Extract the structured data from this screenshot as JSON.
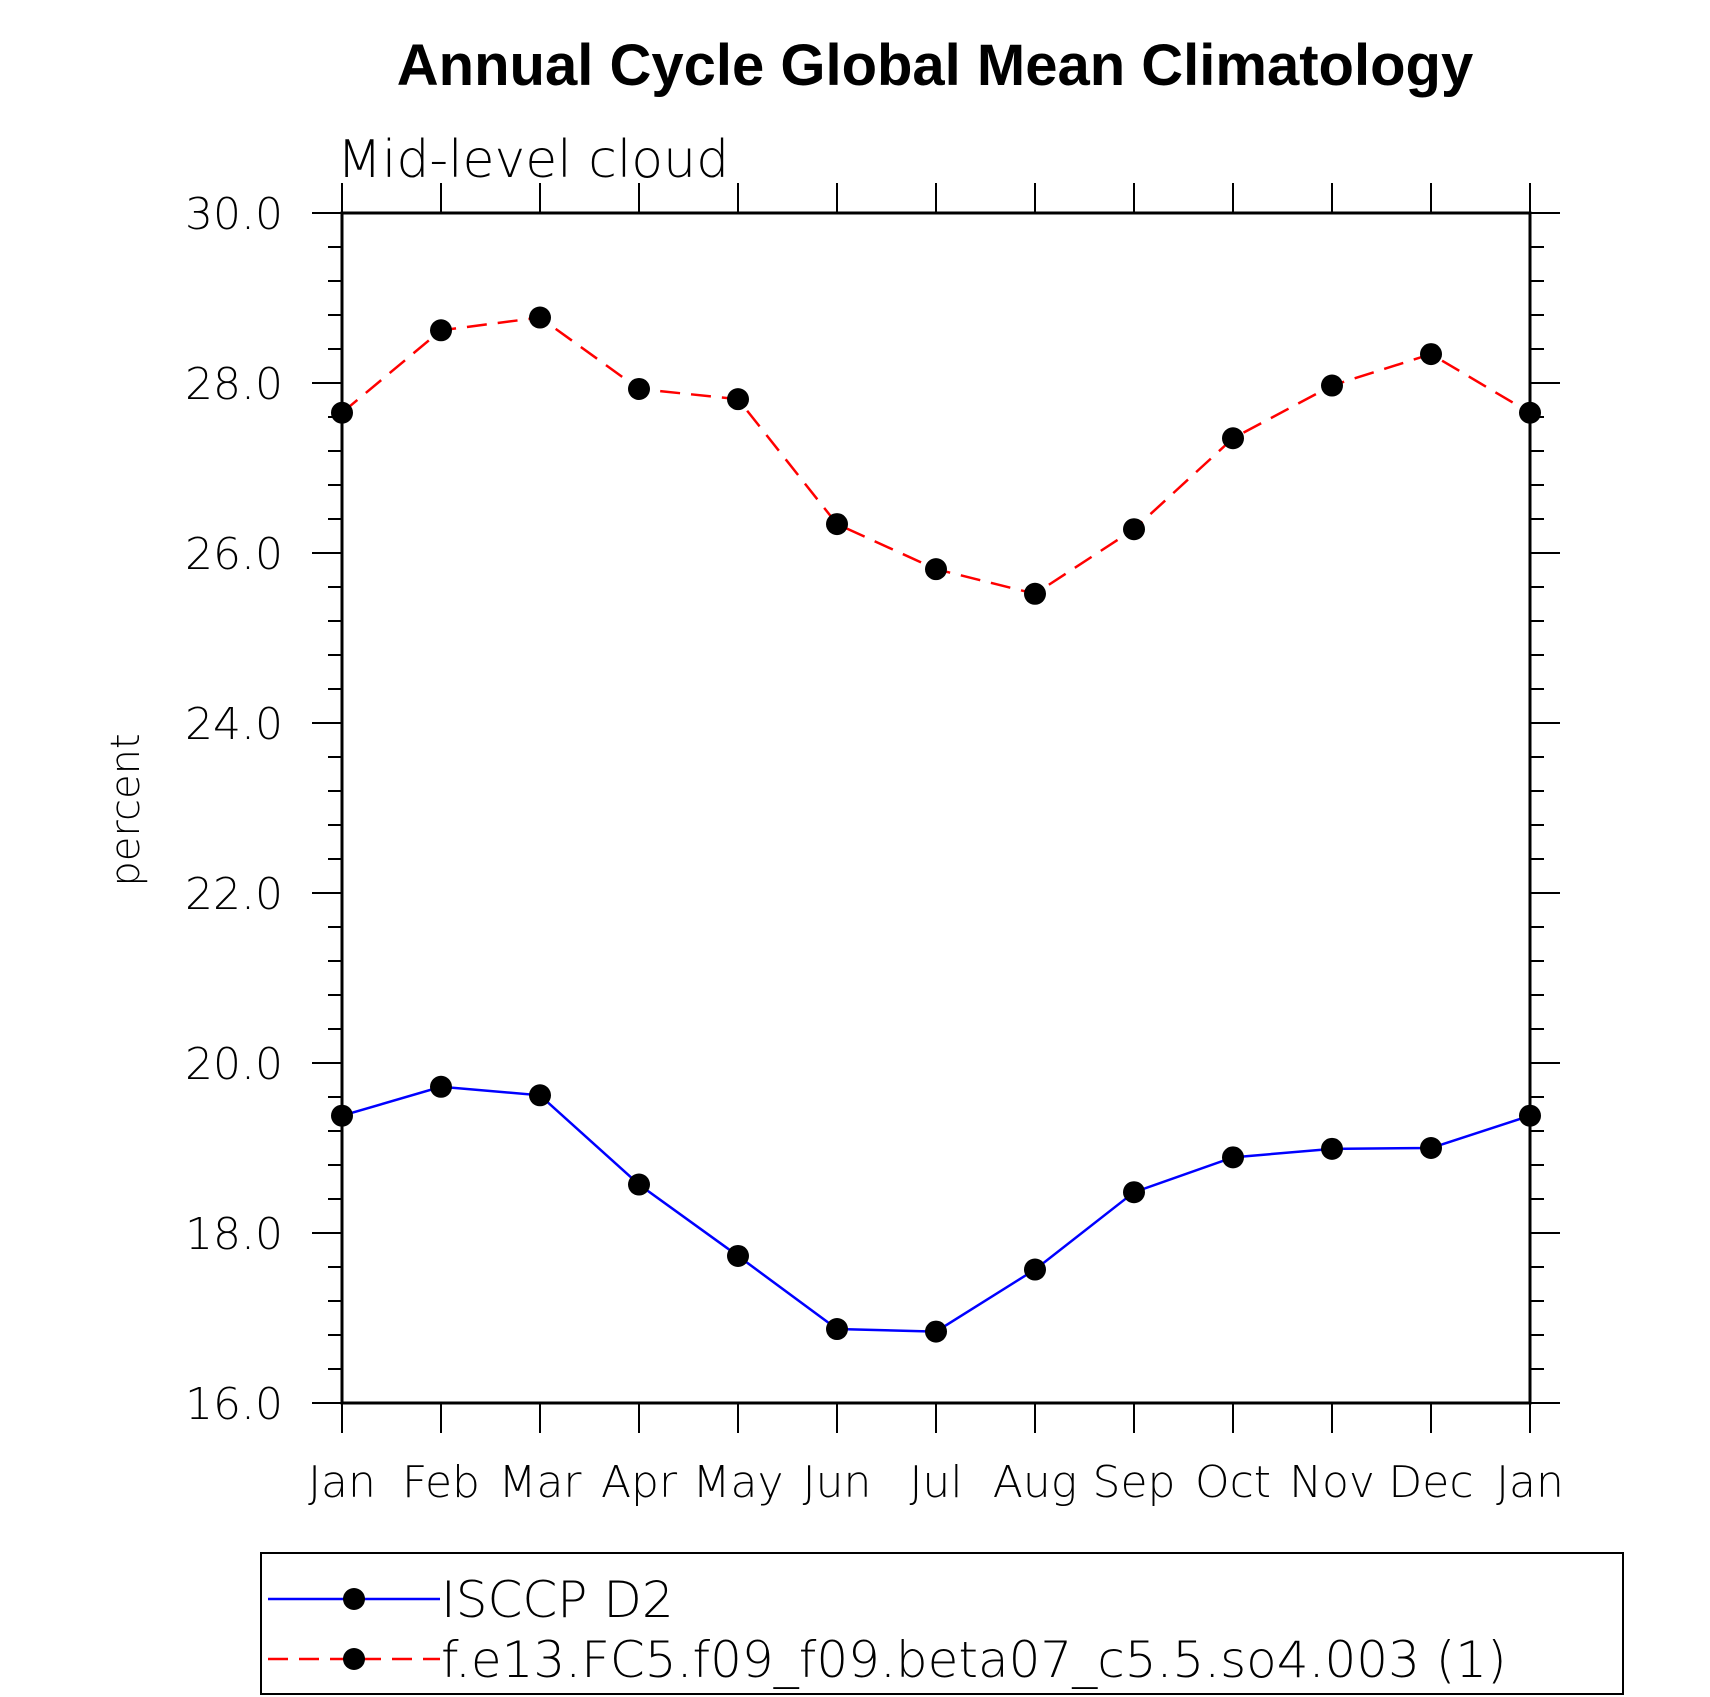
{
  "chart_data": {
    "type": "line",
    "title": "Annual Cycle Global Mean Climatology",
    "subtitle": "Mid-level cloud",
    "xlabel": "",
    "ylabel": "percent",
    "ylim": [
      16.0,
      30.0
    ],
    "y_ticks": [
      "16.0",
      "18.0",
      "20.0",
      "22.0",
      "24.0",
      "26.0",
      "28.0",
      "30.0"
    ],
    "categories": [
      "Jan",
      "Feb",
      "Mar",
      "Apr",
      "May",
      "Jun",
      "Jul",
      "Aug",
      "Sep",
      "Oct",
      "Nov",
      "Dec",
      "Jan"
    ],
    "grid": false,
    "legend_position": "bottom",
    "series": [
      {
        "name": "ISCCP D2",
        "color": "#0000ff",
        "line_style": "solid",
        "marker": "filled-circle",
        "values": [
          19.38,
          19.72,
          19.62,
          18.57,
          17.73,
          16.87,
          16.84,
          17.57,
          18.48,
          18.89,
          18.99,
          19.0,
          19.38
        ]
      },
      {
        "name": "f.e13.FC5.f09_f09.beta07_c5.5.so4.003 (1)",
        "color": "#ff0000",
        "line_style": "dashed",
        "marker": "filled-circle",
        "values": [
          27.65,
          28.62,
          28.77,
          27.93,
          27.81,
          26.34,
          25.81,
          25.52,
          26.28,
          27.35,
          27.97,
          28.34,
          27.65
        ]
      }
    ]
  }
}
